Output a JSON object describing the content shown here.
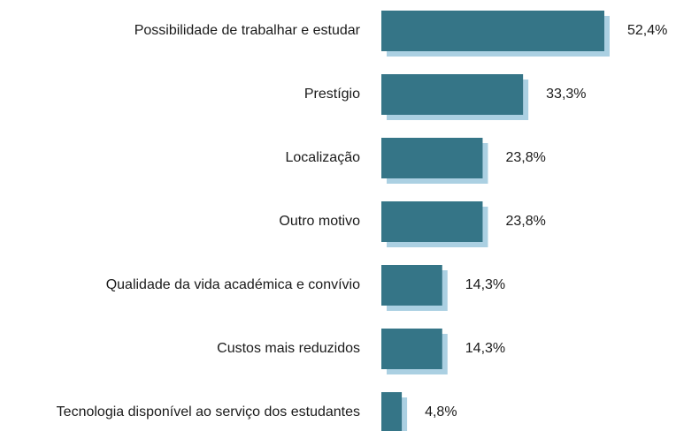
{
  "chart_data": {
    "type": "bar",
    "orientation": "horizontal",
    "categories": [
      "Possibilidade de trabalhar e estudar",
      "Prestígio",
      "Localização",
      "Outro motivo",
      "Qualidade da vida académica e convívio",
      "Custos mais reduzidos",
      "Tecnologia disponível ao serviço dos estudantes"
    ],
    "values": [
      52.4,
      33.3,
      23.8,
      23.8,
      14.3,
      14.3,
      4.8
    ],
    "value_labels": [
      "52,4%",
      "33,3%",
      "23,8%",
      "23,8%",
      "14,3%",
      "14,3%",
      "4,8%"
    ],
    "color": "#357587"
  }
}
